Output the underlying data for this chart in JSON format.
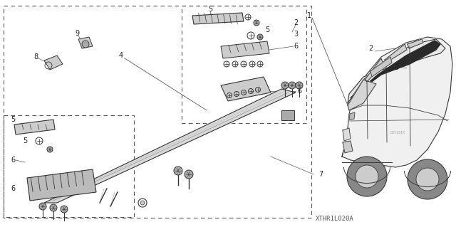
{
  "bg_color": "#ffffff",
  "fig_width": 6.4,
  "fig_height": 3.19,
  "dpi": 100,
  "diagram_code": "XTHR1L020A",
  "line_color": "#555555",
  "dark": "#333333"
}
